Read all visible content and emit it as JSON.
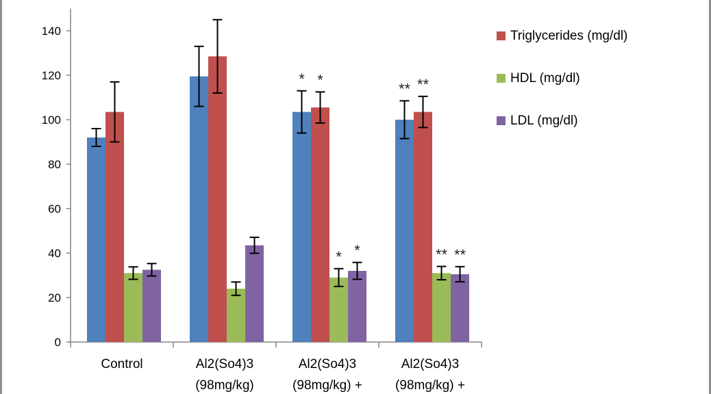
{
  "chart_data": {
    "type": "bar",
    "ylim": [
      0,
      150
    ],
    "yticks": [
      0,
      20,
      40,
      60,
      80,
      100,
      120,
      140
    ],
    "grid": false,
    "legend_position": "top-right",
    "categories": [
      [
        "Control"
      ],
      [
        "Al2(So4)3",
        "(98mg/kg)"
      ],
      [
        "Al2(So4)3",
        "(98mg/kg) +"
      ],
      [
        "Al2(So4)3",
        "(98mg/kg) +"
      ]
    ],
    "series": [
      {
        "name": "",
        "color": "#4f81bd",
        "values": [
          92,
          119.5,
          103.5,
          100
        ],
        "errors": [
          4,
          13.5,
          9.5,
          8.5
        ]
      },
      {
        "name": "Triglycerides (mg/dl)",
        "color": "#c0504d",
        "values": [
          103.5,
          128.5,
          105.5,
          103.5
        ],
        "errors": [
          13.5,
          16.5,
          7,
          7
        ]
      },
      {
        "name": "HDL (mg/dl)",
        "color": "#9bbb59",
        "values": [
          31,
          24,
          29,
          31
        ],
        "errors": [
          2.8,
          3,
          4,
          3
        ]
      },
      {
        "name": "LDL (mg/dl)",
        "color": "#8064a2",
        "values": [
          32.5,
          43.5,
          32,
          30.5
        ],
        "errors": [
          2.8,
          3.6,
          3.8,
          3.4
        ]
      }
    ],
    "annotations": [
      {
        "category": 2,
        "series": 0,
        "text": "*"
      },
      {
        "category": 2,
        "series": 1,
        "text": "*"
      },
      {
        "category": 2,
        "series": 2,
        "text": "*"
      },
      {
        "category": 2,
        "series": 3,
        "text": "*"
      },
      {
        "category": 3,
        "series": 0,
        "text": "**"
      },
      {
        "category": 3,
        "series": 1,
        "text": "**"
      },
      {
        "category": 3,
        "series": 2,
        "text": "**"
      },
      {
        "category": 3,
        "series": 3,
        "text": "**"
      }
    ]
  }
}
